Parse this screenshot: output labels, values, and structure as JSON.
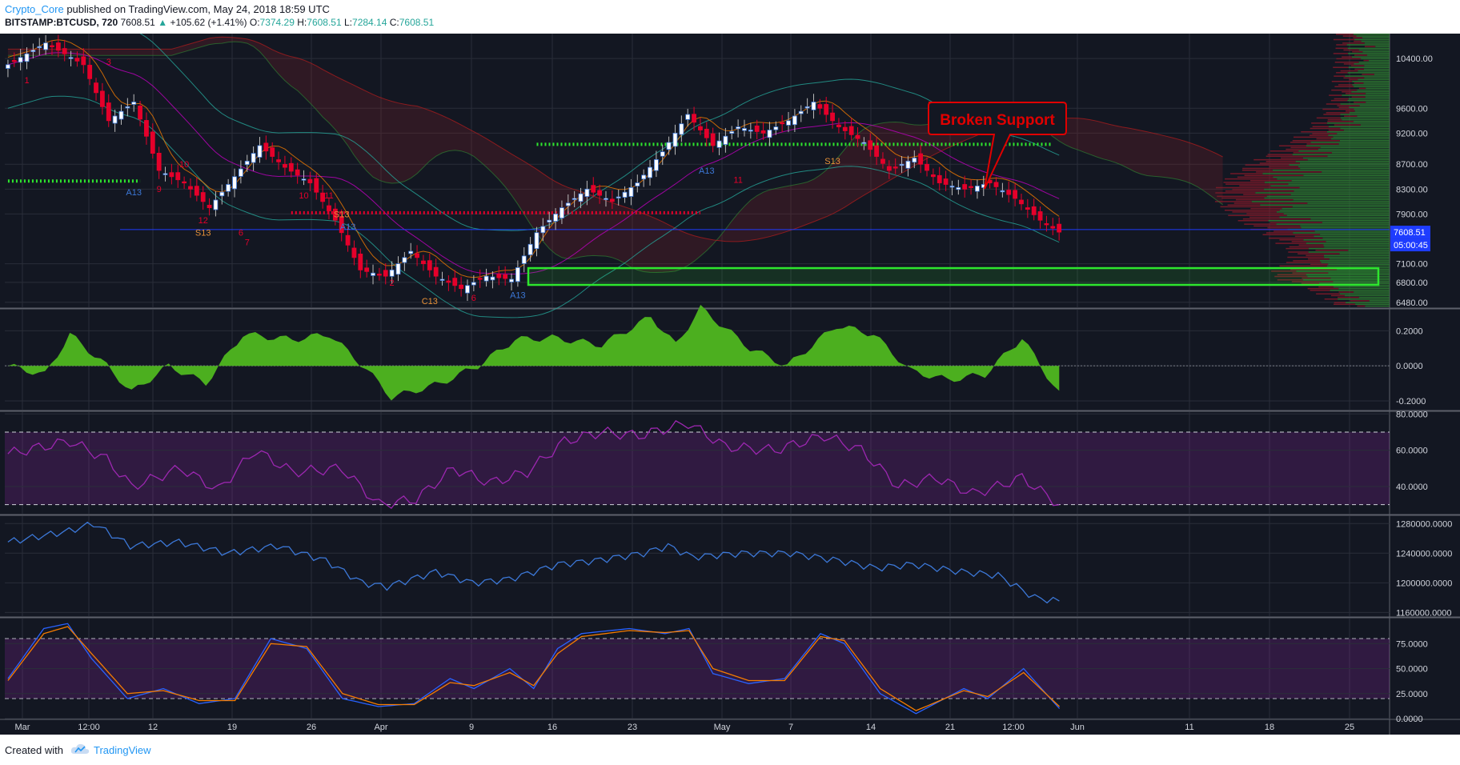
{
  "header": {
    "author": "Crypto_Core",
    "published_text": "published on TradingView.com, May 24, 2018 18:59 UTC",
    "symbol": "BITSTAMP:BTCUSD, 720",
    "last": "7608.51",
    "change": "+105.62 (+1.41%)",
    "o_label": "O:",
    "o_value": "7374.29",
    "h_label": "H:",
    "h_value": "7608.51",
    "l_label": "L:",
    "l_value": "7284.14",
    "c_label": "C:",
    "c_value": "7608.51"
  },
  "footer": {
    "created_with": "Created with",
    "brand": "TradingView"
  },
  "colors": {
    "background": "#131722",
    "grid": "#2a2e39",
    "up": "#ffffff",
    "down": "#e5002b",
    "macd": "#4caf1f",
    "rsi": "#9c27b0",
    "obv": "#3c78d8",
    "stoch_k": "#2962ff",
    "stoch_d": "#f57c00",
    "annotation": "#e00000",
    "zone": "#2ee62e",
    "price_tag": "#1e3cff"
  },
  "chart_data": [
    {
      "type": "candlestick",
      "pane": "price",
      "annotation": "Broken Support",
      "last_price_label": "7608.51",
      "countdown_label": "05:00:45",
      "ylim": [
        6400,
        10800
      ],
      "y_ticks": [
        "10400.00",
        "9600.00",
        "9200.00",
        "8700.00",
        "8300.00",
        "7900.00",
        "7100.00",
        "6800.00",
        "6480.00"
      ],
      "x_ticks": [
        "Mar",
        "12:00",
        "12",
        "19",
        "26",
        "Apr",
        "9",
        "16",
        "23",
        "May",
        "7",
        "14",
        "21",
        "12:00",
        "Jun",
        "11",
        "18",
        "25"
      ],
      "close_path": [
        [
          0,
          10300
        ],
        [
          6,
          10650
        ],
        [
          12,
          10300
        ],
        [
          16,
          9400
        ],
        [
          20,
          9700
        ],
        [
          24,
          8600
        ],
        [
          28,
          8400
        ],
        [
          32,
          8000
        ],
        [
          36,
          8500
        ],
        [
          40,
          9000
        ],
        [
          44,
          8650
        ],
        [
          48,
          8400
        ],
        [
          52,
          7800
        ],
        [
          56,
          7000
        ],
        [
          60,
          6900
        ],
        [
          64,
          7300
        ],
        [
          68,
          6900
        ],
        [
          72,
          6700
        ],
        [
          76,
          6900
        ],
        [
          80,
          6850
        ],
        [
          84,
          7600
        ],
        [
          88,
          8000
        ],
        [
          92,
          8300
        ],
        [
          96,
          8100
        ],
        [
          100,
          8400
        ],
        [
          104,
          8900
        ],
        [
          108,
          9500
        ],
        [
          112,
          9000
        ],
        [
          116,
          9300
        ],
        [
          120,
          9200
        ],
        [
          124,
          9400
        ],
        [
          128,
          9700
        ],
        [
          132,
          9300
        ],
        [
          136,
          9050
        ],
        [
          140,
          8600
        ],
        [
          144,
          8800
        ],
        [
          148,
          8400
        ],
        [
          152,
          8300
        ],
        [
          156,
          8400
        ],
        [
          160,
          8150
        ],
        [
          164,
          7800
        ],
        [
          167,
          7608.51
        ]
      ],
      "n_candles": 168,
      "resistance_levels": [
        9020,
        8430,
        7920
      ],
      "support_zone": [
        6760,
        7030
      ],
      "markers": [
        {
          "text": "A13",
          "i": 20,
          "price": 8200
        },
        {
          "text": "S13",
          "i": 31,
          "price": 7550
        },
        {
          "text": "S13",
          "i": 53,
          "price": 7850
        },
        {
          "text": "A13",
          "i": 54,
          "price": 7650
        },
        {
          "text": "A13",
          "i": 81,
          "price": 6550
        },
        {
          "text": "A13",
          "i": 111,
          "price": 8550
        },
        {
          "text": "S13",
          "i": 131,
          "price": 8700
        },
        {
          "text": "C13",
          "i": 67,
          "price": 6450
        },
        {
          "text": "1",
          "i": 3,
          "price": 10000
        },
        {
          "text": "3",
          "i": 16,
          "price": 10300
        },
        {
          "text": "10",
          "i": 28,
          "price": 8650
        },
        {
          "text": "12",
          "i": 31,
          "price": 7750
        },
        {
          "text": "7",
          "i": 38,
          "price": 7400
        },
        {
          "text": "10",
          "i": 47,
          "price": 8150
        },
        {
          "text": "11",
          "i": 51,
          "price": 8150
        },
        {
          "text": "2",
          "i": 61,
          "price": 6750
        },
        {
          "text": "9",
          "i": 24,
          "price": 8250
        },
        {
          "text": "6",
          "i": 37,
          "price": 7550
        },
        {
          "text": "11",
          "i": 116,
          "price": 8400
        },
        {
          "text": "6",
          "i": 74,
          "price": 6500
        }
      ]
    },
    {
      "type": "area",
      "pane": "macd",
      "name": "",
      "ylim": [
        -0.25,
        0.32
      ],
      "y_ticks": [
        "0.2000",
        "0.0000",
        "-0.2000"
      ],
      "values_path": [
        [
          0,
          0
        ],
        [
          6,
          -0.05
        ],
        [
          10,
          0.18
        ],
        [
          16,
          0
        ],
        [
          20,
          -0.15
        ],
        [
          26,
          0
        ],
        [
          32,
          -0.1
        ],
        [
          38,
          0.18
        ],
        [
          46,
          0.15
        ],
        [
          52,
          0.18
        ],
        [
          58,
          -0.02
        ],
        [
          62,
          -0.18
        ],
        [
          70,
          -0.1
        ],
        [
          76,
          0
        ],
        [
          82,
          0.15
        ],
        [
          88,
          0.16
        ],
        [
          96,
          0.12
        ],
        [
          104,
          0.28
        ],
        [
          108,
          0.12
        ],
        [
          112,
          0.33
        ],
        [
          120,
          0.1
        ],
        [
          126,
          0
        ],
        [
          134,
          0.23
        ],
        [
          140,
          0.18
        ],
        [
          146,
          -0.03
        ],
        [
          152,
          -0.08
        ],
        [
          158,
          -0.05
        ],
        [
          164,
          0.16
        ],
        [
          170,
          -0.16
        ]
      ]
    },
    {
      "type": "line",
      "pane": "rsi",
      "name": "",
      "ylim": [
        25,
        81
      ],
      "y_ticks": [
        "80.0000",
        "60.0000",
        "40.0000"
      ],
      "band": [
        30,
        70
      ],
      "values_path": [
        [
          0,
          58
        ],
        [
          10,
          65
        ],
        [
          16,
          55
        ],
        [
          20,
          40
        ],
        [
          28,
          50
        ],
        [
          34,
          38
        ],
        [
          40,
          60
        ],
        [
          46,
          48
        ],
        [
          54,
          50
        ],
        [
          60,
          30
        ],
        [
          66,
          33
        ],
        [
          72,
          50
        ],
        [
          78,
          42
        ],
        [
          84,
          48
        ],
        [
          90,
          65
        ],
        [
          96,
          70
        ],
        [
          102,
          68
        ],
        [
          110,
          75
        ],
        [
          116,
          62
        ],
        [
          124,
          60
        ],
        [
          132,
          68
        ],
        [
          138,
          60
        ],
        [
          144,
          40
        ],
        [
          150,
          45
        ],
        [
          156,
          36
        ],
        [
          160,
          40
        ],
        [
          164,
          45
        ],
        [
          170,
          30
        ]
      ]
    },
    {
      "type": "line",
      "pane": "obv",
      "name": "",
      "ylim": [
        1155000,
        1290000
      ],
      "y_ticks": [
        "1280000.0000",
        "1240000.0000",
        "1200000.0000",
        "1160000.0000"
      ],
      "values_path": [
        [
          0,
          1255000
        ],
        [
          10,
          1270000
        ],
        [
          14,
          1280000
        ],
        [
          20,
          1250000
        ],
        [
          28,
          1255000
        ],
        [
          36,
          1240000
        ],
        [
          44,
          1250000
        ],
        [
          52,
          1230000
        ],
        [
          58,
          1200000
        ],
        [
          62,
          1195000
        ],
        [
          70,
          1215000
        ],
        [
          76,
          1200000
        ],
        [
          82,
          1205000
        ],
        [
          90,
          1225000
        ],
        [
          96,
          1230000
        ],
        [
          104,
          1240000
        ],
        [
          108,
          1250000
        ],
        [
          112,
          1235000
        ],
        [
          120,
          1240000
        ],
        [
          128,
          1240000
        ],
        [
          136,
          1230000
        ],
        [
          142,
          1220000
        ],
        [
          148,
          1225000
        ],
        [
          156,
          1215000
        ],
        [
          162,
          1210000
        ],
        [
          168,
          1180000
        ],
        [
          172,
          1175000
        ]
      ]
    },
    {
      "type": "line",
      "pane": "stoch",
      "name": "",
      "ylim": [
        0,
        100
      ],
      "y_ticks": [
        "75.0000",
        "50.0000",
        "25.0000",
        "0.0000"
      ],
      "band": [
        20,
        80
      ],
      "series": [
        {
          "values_path": [
            [
              0,
              40
            ],
            [
              6,
              90
            ],
            [
              10,
              95
            ],
            [
              14,
              60
            ],
            [
              20,
              20
            ],
            [
              26,
              30
            ],
            [
              32,
              15
            ],
            [
              38,
              20
            ],
            [
              44,
              80
            ],
            [
              50,
              70
            ],
            [
              56,
              20
            ],
            [
              62,
              12
            ],
            [
              68,
              15
            ],
            [
              74,
              40
            ],
            [
              78,
              30
            ],
            [
              84,
              50
            ],
            [
              88,
              30
            ],
            [
              92,
              70
            ],
            [
              96,
              85
            ],
            [
              104,
              90
            ],
            [
              110,
              85
            ],
            [
              114,
              90
            ],
            [
              118,
              45
            ],
            [
              124,
              35
            ],
            [
              130,
              40
            ],
            [
              136,
              85
            ],
            [
              140,
              75
            ],
            [
              146,
              25
            ],
            [
              152,
              5
            ],
            [
              160,
              30
            ],
            [
              164,
              20
            ],
            [
              170,
              50
            ],
            [
              176,
              10
            ]
          ]
        },
        {
          "values_path": [
            [
              0,
              38
            ],
            [
              6,
              85
            ],
            [
              10,
              92
            ],
            [
              14,
              65
            ],
            [
              20,
              25
            ],
            [
              26,
              28
            ],
            [
              32,
              18
            ],
            [
              38,
              18
            ],
            [
              44,
              75
            ],
            [
              50,
              72
            ],
            [
              56,
              25
            ],
            [
              62,
              14
            ],
            [
              68,
              14
            ],
            [
              74,
              36
            ],
            [
              78,
              33
            ],
            [
              84,
              46
            ],
            [
              88,
              33
            ],
            [
              92,
              65
            ],
            [
              96,
              82
            ],
            [
              104,
              88
            ],
            [
              110,
              86
            ],
            [
              114,
              88
            ],
            [
              118,
              50
            ],
            [
              124,
              38
            ],
            [
              130,
              38
            ],
            [
              136,
              82
            ],
            [
              140,
              78
            ],
            [
              146,
              30
            ],
            [
              152,
              8
            ],
            [
              160,
              28
            ],
            [
              164,
              22
            ],
            [
              170,
              46
            ],
            [
              176,
              12
            ]
          ]
        }
      ]
    }
  ]
}
